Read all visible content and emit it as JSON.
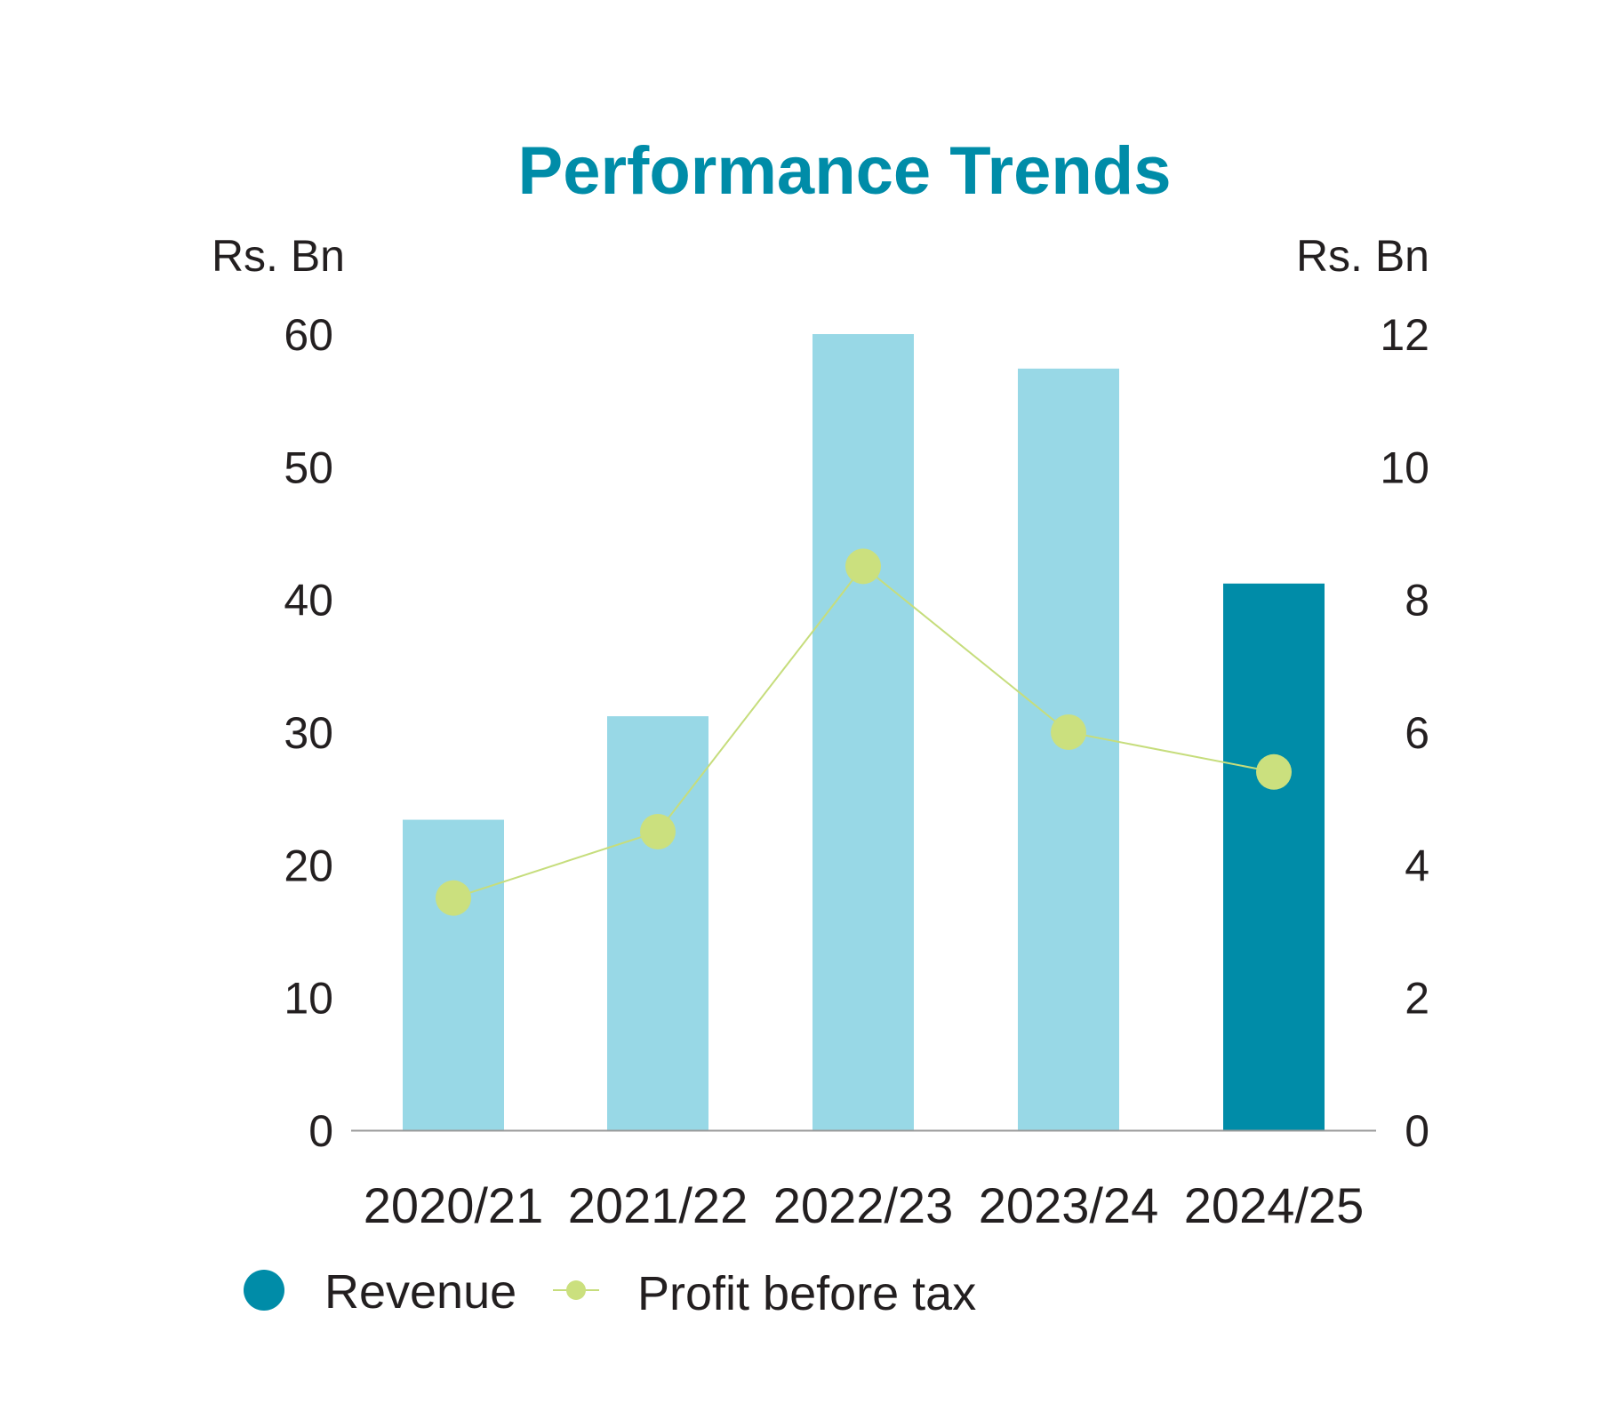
{
  "chart_data": {
    "type": "bar",
    "title": "Performance Trends",
    "categories": [
      "2020/21",
      "2021/22",
      "2022/23",
      "2023/24",
      "2024/25"
    ],
    "left_axis": {
      "unit_label": "Rs. Bn",
      "ylim": [
        0,
        60
      ],
      "ticks": [
        "0",
        "10",
        "20",
        "30",
        "40",
        "50",
        "60"
      ]
    },
    "right_axis": {
      "unit_label": "Rs. Bn",
      "ylim": [
        0,
        12
      ],
      "ticks": [
        "0",
        "2",
        "4",
        "6",
        "8",
        "10",
        "12"
      ]
    },
    "series": [
      {
        "name": "Revenue",
        "type": "bar",
        "axis": "left",
        "values": [
          23.4,
          31.2,
          60.0,
          57.4,
          41.2
        ]
      },
      {
        "name": "Profit before tax",
        "type": "line",
        "axis": "right",
        "values": [
          3.5,
          4.5,
          8.5,
          6.0,
          5.4
        ]
      }
    ],
    "grid": false,
    "legend_position": "bottom-left",
    "colors": {
      "title": "#008ca8",
      "bar": "#98d8e6",
      "bar_highlight": "#008ca8",
      "line": "#c6dd7c",
      "point": "#cbe07e",
      "axis_line": "#9a9a9a"
    }
  }
}
